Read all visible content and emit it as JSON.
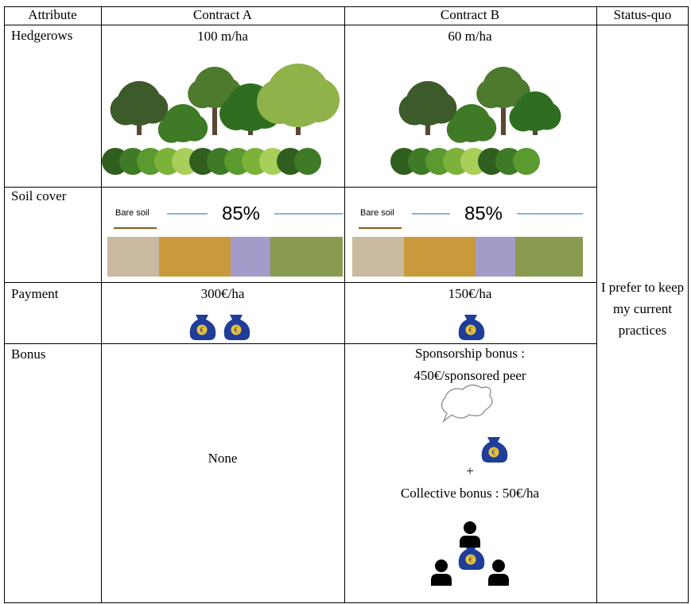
{
  "table": {
    "header": [
      "Attribute",
      "Contract A",
      "Contract B",
      "Status-quo"
    ],
    "rows": [
      {
        "attribute": "Hedgerows",
        "contract_a": "100 m/ha",
        "contract_b": "60 m/ha"
      },
      {
        "attribute": "Soil cover",
        "contract_a": {
          "bare_soil": "Bare soil",
          "cover": "85%"
        },
        "contract_b": {
          "bare_soil": "Bare soil",
          "cover": "85%"
        }
      },
      {
        "attribute": "Payment",
        "contract_a": "300€/ha",
        "contract_b": "150€/ha"
      },
      {
        "attribute": "Bonus",
        "contract_a": "None",
        "contract_b": {
          "sponsorship": "Sponsorship bonus :",
          "sponsorship_amount": "450€/sponsored peer",
          "plus": "+",
          "collective": "Collective bonus : 50€/ha"
        }
      }
    ],
    "status_quo": "I prefer to keep my current practices",
    "bag_symbol": "€"
  }
}
